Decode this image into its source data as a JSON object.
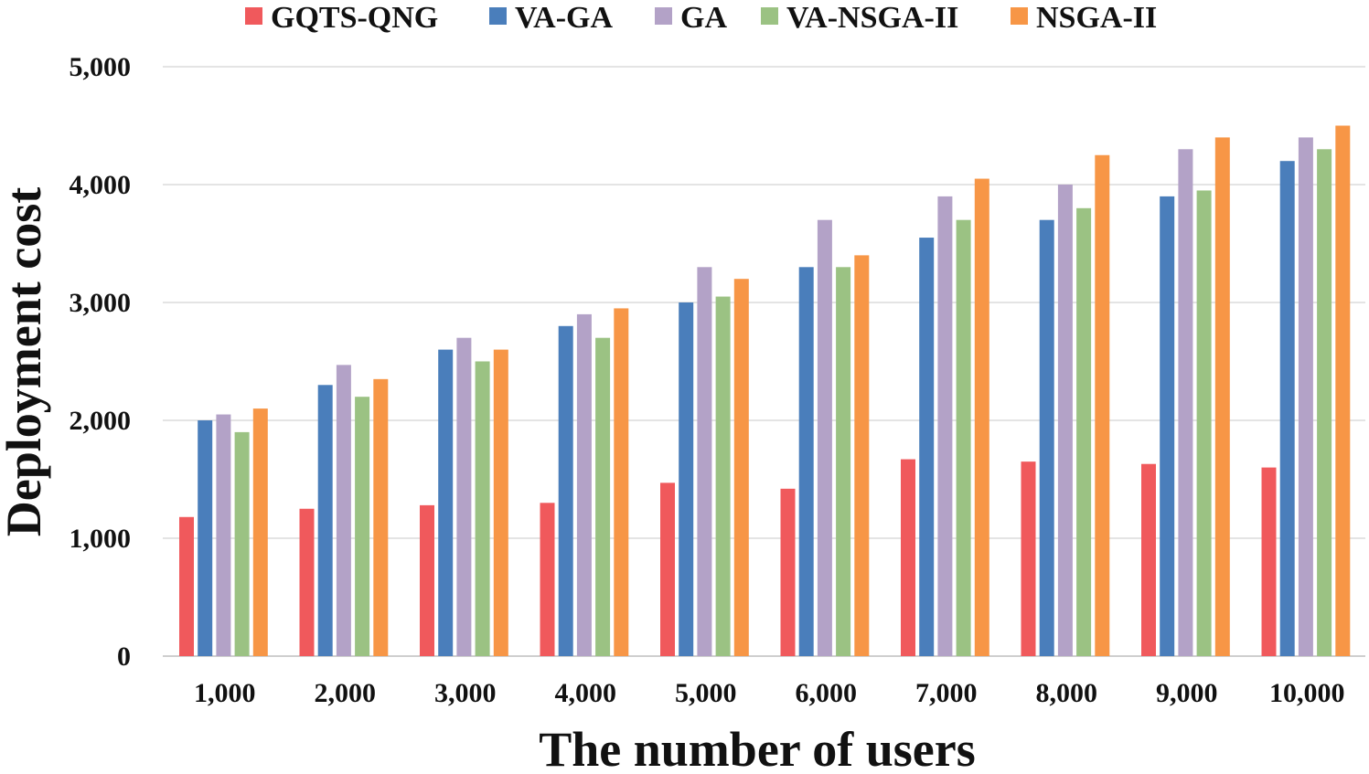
{
  "chart_data": {
    "type": "bar",
    "title": "",
    "xlabel": "The number of users",
    "ylabel": "Deployment cost",
    "ylim": [
      0,
      5000
    ],
    "yticks": [
      0,
      1000,
      2000,
      3000,
      4000,
      5000
    ],
    "ytick_labels": [
      "0",
      "1,000",
      "2,000",
      "3,000",
      "4,000",
      "5,000"
    ],
    "grid": true,
    "legend_position": "top",
    "categories": [
      "1,000",
      "2,000",
      "3,000",
      "4,000",
      "5,000",
      "6,000",
      "7,000",
      "8,000",
      "9,000",
      "10,000"
    ],
    "series": [
      {
        "name": "GQTS-QNG",
        "color": "#F0595C",
        "values": [
          1180,
          1250,
          1280,
          1300,
          1470,
          1420,
          1670,
          1650,
          1630,
          1600
        ]
      },
      {
        "name": "VA-GA",
        "color": "#4A7EBB",
        "values": [
          2000,
          2300,
          2600,
          2800,
          3000,
          3300,
          3550,
          3700,
          3900,
          4200
        ]
      },
      {
        "name": "GA",
        "color": "#B3A2C7",
        "values": [
          2050,
          2470,
          2700,
          2900,
          3300,
          3700,
          3900,
          4000,
          4300,
          4400
        ]
      },
      {
        "name": "VA-NSGA-II",
        "color": "#9BC283",
        "values": [
          1900,
          2200,
          2500,
          2700,
          3050,
          3300,
          3700,
          3800,
          3950,
          4300
        ]
      },
      {
        "name": "NSGA-II",
        "color": "#F79646",
        "values": [
          2100,
          2350,
          2600,
          2950,
          3200,
          3400,
          4050,
          4250,
          4400,
          4500
        ]
      }
    ]
  }
}
